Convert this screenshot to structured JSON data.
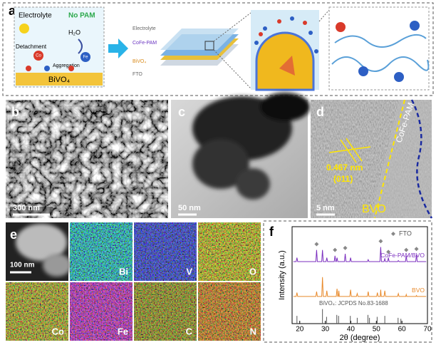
{
  "panel_a": {
    "label": "a",
    "electrolyte": "Electrolyte",
    "no_pam": "No PAM",
    "water": "H₂O",
    "detachment": "Detachment",
    "aggregation": "Aggregation",
    "substrate": "BiVO₄",
    "co": "Co",
    "fe": "Fe",
    "layers": [
      "Electrolyte",
      "CoFe-PAM",
      "BiVO₄",
      "FTO"
    ]
  },
  "panel_b": {
    "label": "b",
    "scale_bar": "300 nm"
  },
  "panel_c": {
    "label": "c",
    "scale_bar": "50 nm"
  },
  "panel_d": {
    "label": "d",
    "shell": "CoFe-PAM",
    "spacing": "0.467 nm",
    "plane": "(011)",
    "scale_bar": "5 nm",
    "core": "BVO"
  },
  "panel_e": {
    "label": "e",
    "scale_bar": "100 nm",
    "elements": [
      "Bi",
      "V",
      "O",
      "Co",
      "Fe",
      "C",
      "N"
    ]
  },
  "chart_data": {
    "type": "line",
    "label": "f",
    "x_label": "2θ (degree)",
    "y_label": "Intensity (a.u.)",
    "xlim": [
      17,
      70
    ],
    "xticks": [
      20,
      30,
      40,
      50,
      60,
      70
    ],
    "ylim": [
      0,
      100
    ],
    "marker_legend": "FTO",
    "marker_color": "#888888",
    "series": [
      {
        "name": "CoFe-PAM/BVO",
        "color": "#7b2fbf",
        "x": [
          17.5,
          18.6,
          18.9,
          19.2,
          26.3,
          26.6,
          26.9,
          28.6,
          28.9,
          29.2,
          30.3,
          30.6,
          30.9,
          33.5,
          33.8,
          34.1,
          34.3,
          34.6,
          34.9,
          37.5,
          37.8,
          38.1,
          39.6,
          39.9,
          40.2,
          46.5,
          46.8,
          47.1,
          51.4,
          51.7,
          52.0,
          53.0,
          53.3,
          53.6,
          54.4,
          54.7,
          55.0,
          58.3,
          58.6,
          58.9,
          61.4,
          61.7,
          62.0,
          65.4,
          65.7,
          66.0,
          69.5
        ],
        "values": [
          64,
          64,
          68,
          64,
          64,
          76,
          64,
          64,
          76,
          64,
          64,
          68,
          64,
          64,
          70,
          64,
          64,
          68,
          64,
          64,
          72,
          64,
          64,
          68,
          64,
          64,
          66,
          64,
          64,
          79,
          64,
          64,
          67,
          64,
          64,
          68,
          64,
          64,
          65,
          64,
          64,
          70,
          64,
          64,
          71,
          64,
          64
        ]
      },
      {
        "name": "BVO",
        "color": "#e8892a",
        "x": [
          17.5,
          18.6,
          18.9,
          19.2,
          26.3,
          26.6,
          26.9,
          28.6,
          28.9,
          29.2,
          30.3,
          30.6,
          30.9,
          34.3,
          34.6,
          34.9,
          35.1,
          35.3,
          35.5,
          39.6,
          39.9,
          40.2,
          42.2,
          42.5,
          42.8,
          46.5,
          46.8,
          47.1,
          50.1,
          50.4,
          50.7,
          51.5,
          51.7,
          51.9,
          53.0,
          53.3,
          53.6,
          58.3,
          58.6,
          58.9,
          61.5,
          61.7,
          61.9,
          65.5,
          65.7,
          65.9,
          69.5
        ],
        "values": [
          28,
          28,
          32,
          28,
          28,
          33,
          28,
          28,
          48,
          28,
          28,
          34,
          28,
          28,
          36,
          28,
          28,
          34,
          28,
          28,
          35,
          28,
          28,
          31,
          28,
          28,
          33,
          28,
          28,
          32,
          28,
          28,
          35,
          28,
          28,
          34,
          28,
          28,
          31,
          28,
          28,
          30,
          28,
          28,
          29,
          28,
          28
        ]
      }
    ],
    "reference": {
      "name": "BiVO₄: JCPDS No.83-1688",
      "color": "#555555",
      "x": [
        18.9,
        28.9,
        30.5,
        34.5,
        35.2,
        39.8,
        42.5,
        46.7,
        47.3,
        50.3,
        53.3,
        58.5,
        59.6
      ],
      "values": [
        8,
        15,
        7,
        9,
        8,
        8,
        6,
        9,
        6,
        7,
        8,
        6,
        5
      ]
    },
    "fto_peaks": {
      "x": [
        26.6,
        33.8,
        37.8,
        51.7,
        54.7,
        61.7,
        65.7
      ],
      "values": [
        82,
        76,
        78,
        85,
        74,
        76,
        77
      ]
    }
  }
}
